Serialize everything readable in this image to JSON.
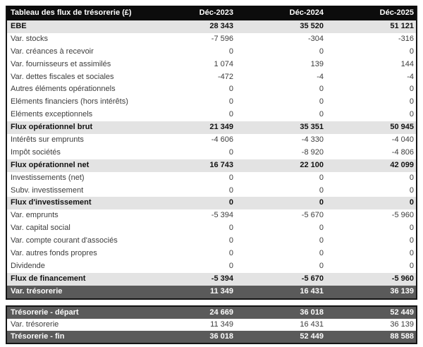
{
  "table": {
    "title": "Tableau des flux de trésorerie (£)",
    "columns": [
      "Déc-2023",
      "Déc-2024",
      "Déc-2025"
    ],
    "colors": {
      "header_bg": "#0c0c0c",
      "header_text": "#ffffff",
      "subtotal_row_bg": "#e3e3e3",
      "dark_row_bg": "#5a5a5a",
      "dark_row_text": "#fcfcfc",
      "border": "#141414"
    },
    "rows": [
      {
        "label": "EBE",
        "values": [
          "28 343",
          "35 520",
          "51 121"
        ],
        "style": "subtotal"
      },
      {
        "label": "Var. stocks",
        "values": [
          "-7 596",
          "-304",
          "-316"
        ],
        "style": "normal"
      },
      {
        "label": "Var. créances à recevoir",
        "values": [
          "0",
          "0",
          "0"
        ],
        "style": "normal"
      },
      {
        "label": "Var. fournisseurs et assimilés",
        "values": [
          "1 074",
          "139",
          "144"
        ],
        "style": "normal"
      },
      {
        "label": "Var. dettes fiscales et sociales",
        "values": [
          "-472",
          "-4",
          "-4"
        ],
        "style": "normal"
      },
      {
        "label": "Autres éléments opérationnels",
        "values": [
          "0",
          "0",
          "0"
        ],
        "style": "normal"
      },
      {
        "label": "Eléments financiers (hors intérêts)",
        "values": [
          "0",
          "0",
          "0"
        ],
        "style": "normal"
      },
      {
        "label": "Eléments exceptionnels",
        "values": [
          "0",
          "0",
          "0"
        ],
        "style": "normal"
      },
      {
        "label": "Flux opérationnel brut",
        "values": [
          "21 349",
          "35 351",
          "50 945"
        ],
        "style": "subtotal"
      },
      {
        "label": "Intérêts sur emprunts",
        "values": [
          "-4 606",
          "-4 330",
          "-4 040"
        ],
        "style": "normal"
      },
      {
        "label": "Impôt sociétés",
        "values": [
          "0",
          "-8 920",
          "-4 806"
        ],
        "style": "normal"
      },
      {
        "label": "Flux opérationnel net",
        "values": [
          "16 743",
          "22 100",
          "42 099"
        ],
        "style": "subtotal"
      },
      {
        "label": "Investissements (net)",
        "values": [
          "0",
          "0",
          "0"
        ],
        "style": "normal"
      },
      {
        "label": "Subv. investissement",
        "values": [
          "0",
          "0",
          "0"
        ],
        "style": "normal"
      },
      {
        "label": "Flux d'investissement",
        "values": [
          "0",
          "0",
          "0"
        ],
        "style": "subtotal"
      },
      {
        "label": "Var. emprunts",
        "values": [
          "-5 394",
          "-5 670",
          "-5 960"
        ],
        "style": "normal"
      },
      {
        "label": "Var. capital social",
        "values": [
          "0",
          "0",
          "0"
        ],
        "style": "normal"
      },
      {
        "label": "Var. compte courant d'associés",
        "values": [
          "0",
          "0",
          "0"
        ],
        "style": "normal"
      },
      {
        "label": "Var. autres fonds propres",
        "values": [
          "0",
          "0",
          "0"
        ],
        "style": "normal"
      },
      {
        "label": "Dividende",
        "values": [
          "0",
          "0",
          "0"
        ],
        "style": "normal"
      },
      {
        "label": "Flux de financement",
        "values": [
          "-5 394",
          "-5 670",
          "-5 960"
        ],
        "style": "subtotal"
      },
      {
        "label": "Var. trésorerie",
        "values": [
          "11 349",
          "16 431",
          "36 139"
        ],
        "style": "dark"
      }
    ],
    "summary_rows": [
      {
        "label": "Trésorerie - départ",
        "values": [
          "24 669",
          "36 018",
          "52 449"
        ],
        "style": "dark"
      },
      {
        "label": "Var. trésorerie",
        "values": [
          "11 349",
          "16 431",
          "36 139"
        ],
        "style": "normal"
      },
      {
        "label": "Trésorerie - fin",
        "values": [
          "36 018",
          "52 449",
          "88 588"
        ],
        "style": "dark"
      }
    ]
  }
}
